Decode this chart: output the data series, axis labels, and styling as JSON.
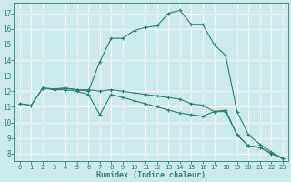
{
  "title": "",
  "xlabel": "Humidex (Indice chaleur)",
  "ylabel": "",
  "bg_color": "#cce9ed",
  "grid_color": "#ffffff",
  "line_color": "#2e7d6e",
  "xlim": [
    -0.5,
    23.5
  ],
  "ylim": [
    7.5,
    17.7
  ],
  "xticks": [
    0,
    1,
    2,
    3,
    4,
    5,
    6,
    7,
    8,
    9,
    10,
    11,
    12,
    13,
    14,
    15,
    16,
    17,
    18,
    19,
    20,
    21,
    22,
    23
  ],
  "yticks": [
    8,
    9,
    10,
    11,
    12,
    13,
    14,
    15,
    16,
    17
  ],
  "lines": [
    {
      "x": [
        0,
        1,
        2,
        3,
        4,
        5,
        6,
        7,
        8,
        9,
        10,
        11,
        12,
        13,
        14,
        15,
        16,
        17,
        18,
        19,
        20,
        21,
        22,
        23
      ],
      "y": [
        11.2,
        11.1,
        12.2,
        12.1,
        12.1,
        12.0,
        11.8,
        10.5,
        11.8,
        11.6,
        11.4,
        11.2,
        11.0,
        10.8,
        10.6,
        10.5,
        10.4,
        10.7,
        10.8,
        9.2,
        8.5,
        8.4,
        8.0,
        7.7
      ]
    },
    {
      "x": [
        0,
        1,
        2,
        3,
        4,
        5,
        6,
        7,
        8,
        9,
        10,
        11,
        12,
        13,
        14,
        15,
        16,
        17,
        18,
        19,
        20,
        21,
        22,
        23
      ],
      "y": [
        11.2,
        11.1,
        12.2,
        12.15,
        12.2,
        12.1,
        12.1,
        12.0,
        12.1,
        12.0,
        11.9,
        11.8,
        11.7,
        11.6,
        11.5,
        11.2,
        11.1,
        10.7,
        10.7,
        9.2,
        8.5,
        8.4,
        8.0,
        7.7
      ]
    },
    {
      "x": [
        2,
        3,
        4,
        5,
        6,
        7,
        8,
        9,
        10,
        11,
        12,
        13,
        14,
        15,
        16,
        17,
        18
      ],
      "y": [
        12.2,
        12.15,
        12.2,
        12.1,
        12.0,
        13.9,
        15.4,
        15.4,
        15.9,
        16.1,
        16.2,
        17.0,
        17.2,
        16.3,
        16.3,
        15.0,
        14.3
      ]
    },
    {
      "x": [
        18,
        19,
        20,
        21,
        22,
        23
      ],
      "y": [
        14.3,
        10.7,
        9.2,
        8.6,
        8.1,
        7.7
      ]
    }
  ]
}
